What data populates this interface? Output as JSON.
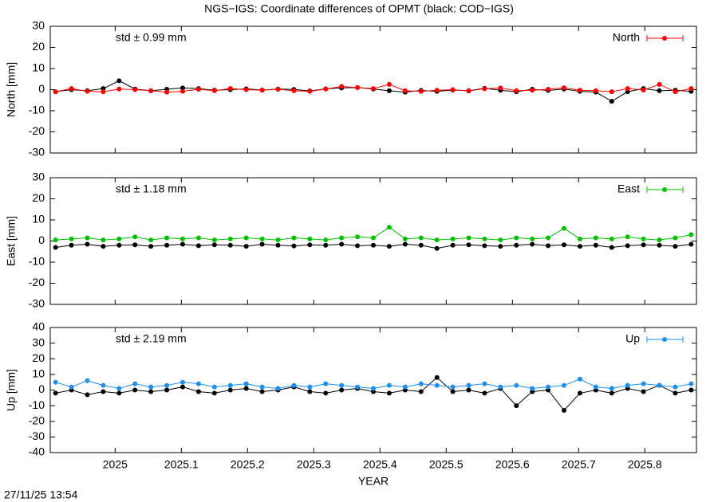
{
  "title": "NGS−IGS: Coordinate differences of OPMT (black: COD−IGS)",
  "timestamp": "27/11/25 13:54",
  "chart_data": [
    {
      "type": "line",
      "ylabel": "North [mm]",
      "annotation": "std ± 0.99 mm",
      "annotation_color": "#ff0000",
      "legend": "upper right",
      "xlim": [
        2024.902,
        2025.878
      ],
      "xticks": [
        2025,
        2025.1,
        2025.2,
        2025.3,
        2025.4,
        2025.5,
        2025.6,
        2025.7,
        2025.8
      ],
      "ylim": [
        -30,
        30
      ],
      "yticks": [
        -30,
        -20,
        -10,
        0,
        10,
        20,
        30
      ],
      "x": [
        2024.91,
        2024.934,
        2024.958,
        2024.982,
        2025.006,
        2025.03,
        2025.054,
        2025.078,
        2025.102,
        2025.126,
        2025.15,
        2025.174,
        2025.198,
        2025.222,
        2025.246,
        2025.27,
        2025.294,
        2025.318,
        2025.342,
        2025.366,
        2025.39,
        2025.414,
        2025.438,
        2025.462,
        2025.486,
        2025.51,
        2025.534,
        2025.558,
        2025.582,
        2025.606,
        2025.63,
        2025.654,
        2025.678,
        2025.702,
        2025.726,
        2025.75,
        2025.774,
        2025.798,
        2025.822,
        2025.846,
        2025.87
      ],
      "series": [
        {
          "color": "#000000",
          "values": [
            -1,
            0,
            -0.5,
            0.5,
            4.2,
            0.3,
            -0.5,
            0.2,
            0.8,
            0.5,
            -0.3,
            0,
            0.4,
            -0.2,
            0.3,
            0.1,
            -0.6,
            0.4,
            0.8,
            1,
            0.3,
            -0.5,
            -1.2,
            -0.4,
            -0.8,
            -0.2,
            -0.5,
            0.6,
            -0.3,
            -1,
            0.2,
            -0.4,
            0.3,
            -0.8,
            -1.2,
            -5.5,
            -1,
            0.5,
            -0.5,
            -0.3,
            -0.8
          ]
        },
        {
          "name": "North",
          "color": "#ff0000",
          "values": [
            -1,
            0.5,
            -0.8,
            -1,
            0.3,
            0,
            -0.5,
            -1.2,
            -0.8,
            0.2,
            -0.5,
            0.5,
            0,
            -0.3,
            0.2,
            -0.5,
            -0.8,
            0.3,
            1.5,
            1,
            0.5,
            2.5,
            -0.5,
            -0.8,
            -0.3,
            0,
            -0.6,
            0.4,
            0.8,
            -0.5,
            -0.3,
            0.2,
            0.9,
            -0.3,
            -0.5,
            -1,
            0.5,
            -0.2,
            2.5,
            -1,
            0.5
          ]
        }
      ]
    },
    {
      "type": "line",
      "ylabel": "East [mm]",
      "annotation": "std ± 1.18 mm",
      "annotation_color": "#00c000",
      "legend": "upper right",
      "xlim": [
        2024.902,
        2025.878
      ],
      "xticks": [
        2025,
        2025.1,
        2025.2,
        2025.3,
        2025.4,
        2025.5,
        2025.6,
        2025.7,
        2025.8
      ],
      "ylim": [
        -30,
        30
      ],
      "yticks": [
        -30,
        -20,
        -10,
        0,
        10,
        20,
        30
      ],
      "x": [
        2024.91,
        2024.934,
        2024.958,
        2024.982,
        2025.006,
        2025.03,
        2025.054,
        2025.078,
        2025.102,
        2025.126,
        2025.15,
        2025.174,
        2025.198,
        2025.222,
        2025.246,
        2025.27,
        2025.294,
        2025.318,
        2025.342,
        2025.366,
        2025.39,
        2025.414,
        2025.438,
        2025.462,
        2025.486,
        2025.51,
        2025.534,
        2025.558,
        2025.582,
        2025.606,
        2025.63,
        2025.654,
        2025.678,
        2025.702,
        2025.726,
        2025.75,
        2025.774,
        2025.798,
        2025.822,
        2025.846,
        2025.87
      ],
      "series": [
        {
          "color": "#000000",
          "values": [
            -3,
            -2,
            -1.5,
            -2.5,
            -2,
            -1.8,
            -2.5,
            -2,
            -1.5,
            -2.2,
            -1.8,
            -2,
            -2.5,
            -1.5,
            -2,
            -2.3,
            -1.8,
            -2,
            -1.5,
            -2.2,
            -2,
            -2.5,
            -1.5,
            -2,
            -3.5,
            -2,
            -1.8,
            -2.2,
            -2.5,
            -2,
            -1.5,
            -2.2,
            -1.8,
            -2.5,
            -2,
            -3,
            -2.2,
            -1.8,
            -2,
            -2.5,
            -1.5
          ]
        },
        {
          "name": "East",
          "color": "#00c000",
          "values": [
            0.5,
            1,
            1.5,
            0.5,
            1,
            2,
            0.5,
            1.5,
            1,
            1.5,
            0.5,
            1,
            1.5,
            1,
            0.5,
            1.5,
            1,
            0.5,
            1.5,
            2,
            1.5,
            6.5,
            1,
            1.5,
            0.5,
            1,
            1.5,
            1,
            0.5,
            1.5,
            1,
            1.5,
            6,
            1,
            1.5,
            1,
            2,
            1,
            0.5,
            1.5,
            3
          ]
        }
      ]
    },
    {
      "type": "line",
      "ylabel": "Up [mm]",
      "xlabel": "YEAR",
      "annotation": "std ± 2.19 mm",
      "annotation_color": "#1e8ff0",
      "legend": "upper right",
      "xlim": [
        2024.902,
        2025.878
      ],
      "xticks": [
        2025,
        2025.1,
        2025.2,
        2025.3,
        2025.4,
        2025.5,
        2025.6,
        2025.7,
        2025.8
      ],
      "ylim": [
        -40,
        40
      ],
      "yticks": [
        -40,
        -30,
        -20,
        -10,
        0,
        10,
        20,
        30,
        40
      ],
      "x": [
        2024.91,
        2024.934,
        2024.958,
        2024.982,
        2025.006,
        2025.03,
        2025.054,
        2025.078,
        2025.102,
        2025.126,
        2025.15,
        2025.174,
        2025.198,
        2025.222,
        2025.246,
        2025.27,
        2025.294,
        2025.318,
        2025.342,
        2025.366,
        2025.39,
        2025.414,
        2025.438,
        2025.462,
        2025.486,
        2025.51,
        2025.534,
        2025.558,
        2025.582,
        2025.606,
        2025.63,
        2025.654,
        2025.678,
        2025.702,
        2025.726,
        2025.75,
        2025.774,
        2025.798,
        2025.822,
        2025.846,
        2025.87
      ],
      "series": [
        {
          "color": "#000000",
          "values": [
            -2,
            0,
            -3,
            -1,
            -2,
            0,
            -1,
            0,
            2,
            -1,
            -2,
            0,
            1,
            -1,
            0,
            2,
            -1,
            -2,
            0,
            1,
            -1,
            -2,
            0,
            -1,
            8,
            -1,
            0,
            -2,
            1,
            -10,
            -1,
            0,
            -13,
            -2,
            0,
            -2,
            1,
            -1,
            3,
            -2,
            0
          ]
        },
        {
          "name": "Up",
          "color": "#1e8ff0",
          "values": [
            5,
            2,
            6,
            3,
            1,
            4,
            2,
            3,
            5,
            4,
            2,
            3,
            4,
            2,
            1,
            3,
            2,
            4,
            3,
            2,
            1,
            3,
            2,
            4,
            3,
            2,
            3,
            4,
            2,
            3,
            1,
            2,
            3,
            7,
            2,
            1,
            3,
            4,
            3,
            2,
            4
          ]
        }
      ]
    }
  ]
}
